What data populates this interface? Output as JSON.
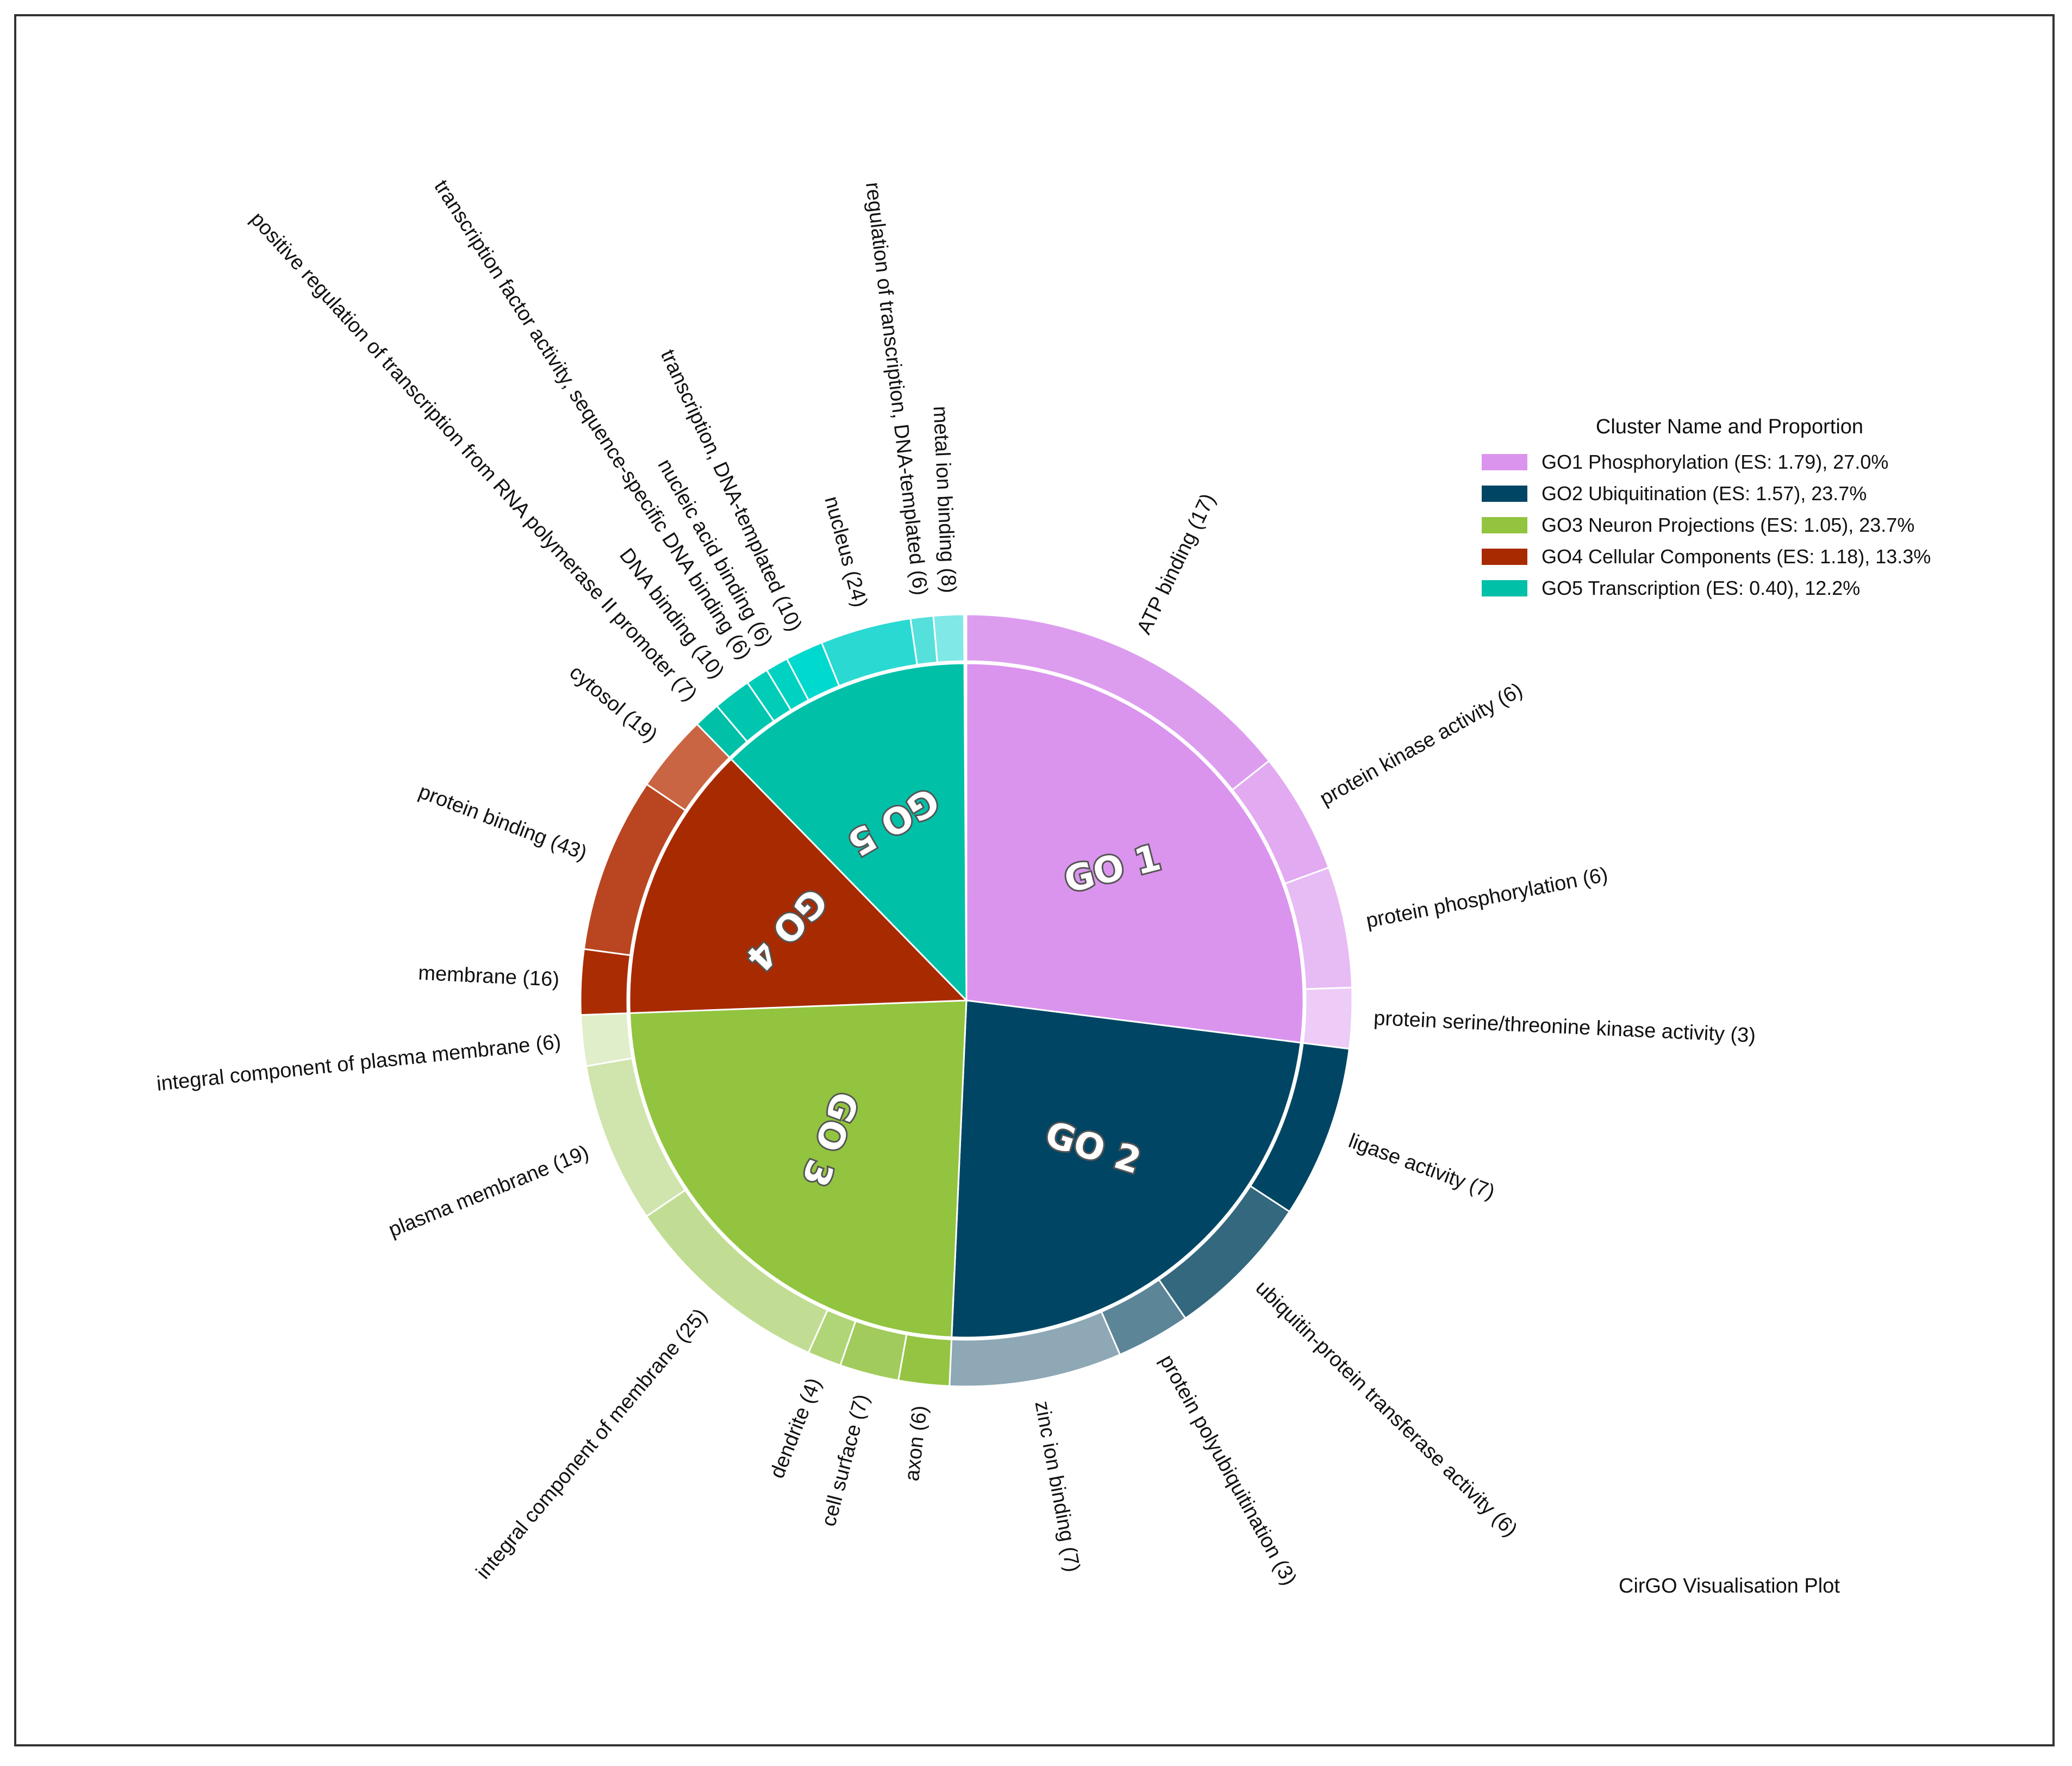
{
  "chart_data": {
    "type": "pie",
    "subtype": "two-level sunburst (CirGO)",
    "caption": "CirGO Visualisation Plot",
    "legend_title": "Cluster Name and Proportion",
    "legend_placement": "top-right",
    "clusters": [
      {
        "id": "GO1",
        "center_label": "GO 1",
        "legend_label": "GO1 Phosphorylation (ES: 1.79), 27.0%",
        "proportion": 27.0,
        "color": "#DA94EE",
        "terms": [
          {
            "label": "ATP binding (17)",
            "count": 17,
            "color": "#DD9DEF"
          },
          {
            "label": "protein kinase activity (6)",
            "count": 6,
            "color": "#E2AAF1"
          },
          {
            "label": "protein phosphorylation (6)",
            "count": 6,
            "color": "#E7BBF4"
          },
          {
            "label": "protein serine/threonine kinase activity (3)",
            "count": 3,
            "color": "#EDCCF7"
          }
        ]
      },
      {
        "id": "GO2",
        "center_label": "GO 2",
        "legend_label": "GO2 Ubiquitination (ES: 1.57), 23.7%",
        "proportion": 23.7,
        "color": "#004664",
        "terms": [
          {
            "label": "ligase activity (7)",
            "count": 7,
            "color": "#004664"
          },
          {
            "label": "ubiquitin-protein transferase activity (6)",
            "count": 6,
            "color": "#33687E"
          },
          {
            "label": "protein polyubiquitination (3)",
            "count": 3,
            "color": "#5D8598"
          },
          {
            "label": "zinc ion binding (7)",
            "count": 7,
            "color": "#8EA8B5"
          }
        ]
      },
      {
        "id": "GO3",
        "center_label": "GO 3",
        "legend_label": "GO3 Neuron Projections (ES: 1.05), 23.7%",
        "proportion": 23.7,
        "color": "#92C43F",
        "terms": [
          {
            "label": "axon (6)",
            "count": 6,
            "color": "#94C441"
          },
          {
            "label": "cell surface (7)",
            "count": 7,
            "color": "#A1CB5C"
          },
          {
            "label": "dendrite (4)",
            "count": 4,
            "color": "#B0D576"
          },
          {
            "label": "integral component of membrane (25)",
            "count": 25,
            "color": "#C1DD94"
          },
          {
            "label": "plasma membrane (19)",
            "count": 19,
            "color": "#D0E5AE"
          },
          {
            "label": "integral component of plasma membrane (6)",
            "count": 6,
            "color": "#E0EECA"
          }
        ]
      },
      {
        "id": "GO4",
        "center_label": "GO 4",
        "legend_label": "GO4 Cellular Components (ES: 1.18), 13.3%",
        "proportion": 13.3,
        "color": "#A82A00",
        "terms": [
          {
            "label": "membrane (16)",
            "count": 16,
            "color": "#AA2C02"
          },
          {
            "label": "protein binding (43)",
            "count": 43,
            "color": "#B94621"
          },
          {
            "label": "cytosol (19)",
            "count": 19,
            "color": "#CA6544"
          }
        ]
      },
      {
        "id": "GO5",
        "center_label": "GO 5",
        "legend_label": "GO5 Transcription (ES: 0.40), 12.2%",
        "proportion": 12.2,
        "color": "#00C0A8",
        "terms": [
          {
            "label": "positive regulation of transcription from RNA polymerase II promoter (7)",
            "count": 7,
            "color": "#00C0A8"
          },
          {
            "label": "DNA binding (10)",
            "count": 10,
            "color": "#00C6B0"
          },
          {
            "label": "transcription factor activity, sequence-specific DNA binding (6)",
            "count": 6,
            "color": "#00CCB8"
          },
          {
            "label": "nucleic acid binding (6)",
            "count": 6,
            "color": "#00D2C2"
          },
          {
            "label": "transcription, DNA-templated (10)",
            "count": 10,
            "color": "#00D9CE"
          },
          {
            "label": "nucleus (24)",
            "count": 24,
            "color": "#2AD9D2"
          },
          {
            "label": "regulation of transcription, DNA-templated (6)",
            "count": 6,
            "color": "#55E0DC"
          },
          {
            "label": "metal ion binding (8)",
            "count": 8,
            "color": "#80E8E6"
          }
        ]
      }
    ]
  }
}
